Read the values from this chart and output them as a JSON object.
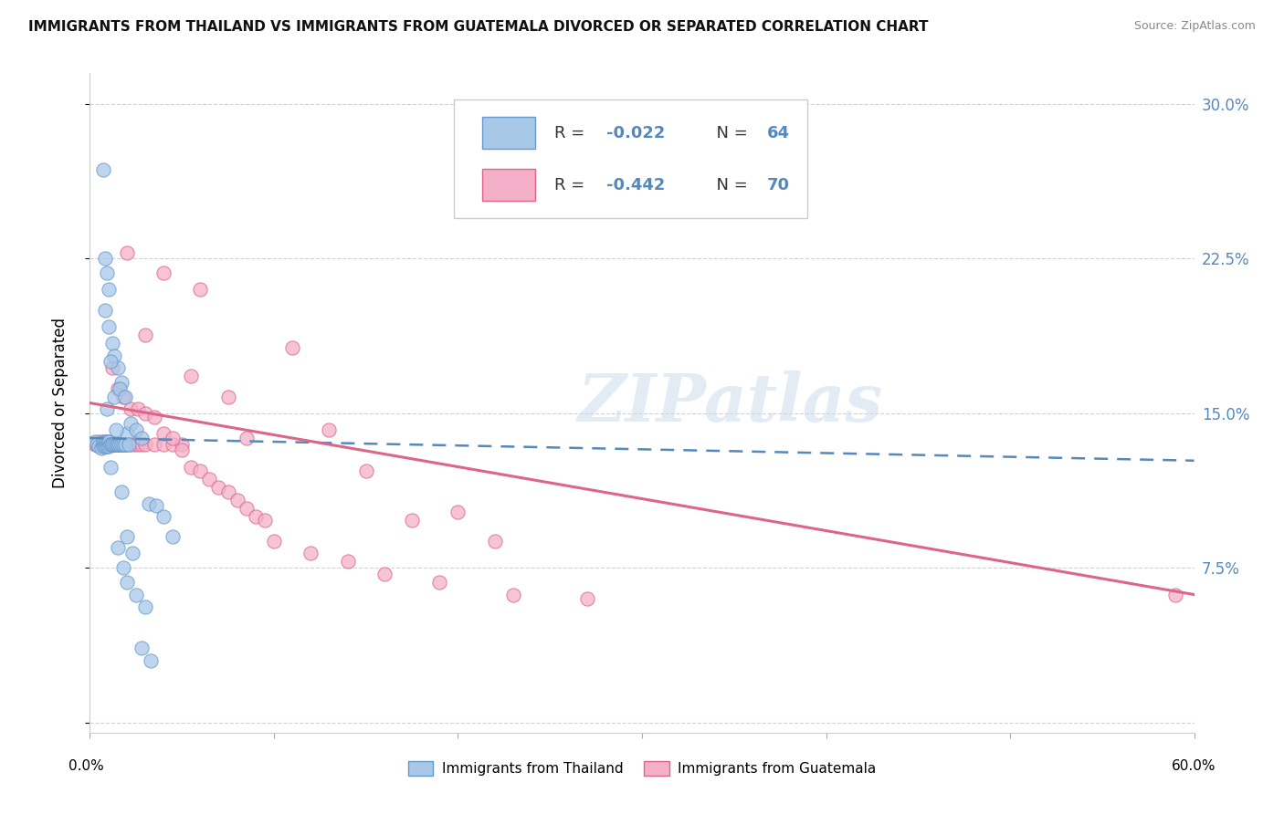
{
  "title": "IMMIGRANTS FROM THAILAND VS IMMIGRANTS FROM GUATEMALA DIVORCED OR SEPARATED CORRELATION CHART",
  "source": "Source: ZipAtlas.com",
  "ylabel": "Divorced or Separated",
  "yticks": [
    0.0,
    0.075,
    0.15,
    0.225,
    0.3
  ],
  "ytick_labels": [
    "",
    "7.5%",
    "15.0%",
    "22.5%",
    "30.0%"
  ],
  "xlim": [
    0.0,
    0.6
  ],
  "ylim": [
    -0.005,
    0.315
  ],
  "color_thailand": "#a8c8e8",
  "color_guatemala": "#f4b0c8",
  "color_edge_thailand": "#6699cc",
  "color_edge_guatemala": "#dd6688",
  "color_line_thailand": "#5588bb",
  "color_line_guatemala": "#dd6688",
  "label_thailand": "Immigrants from Thailand",
  "label_guatemala": "Immigrants from Guatemala",
  "legend_text_r1": "R = -0.022",
  "legend_text_n1": "N = 64",
  "legend_text_r2": "R = -0.442",
  "legend_text_n2": "N = 70",
  "watermark": "ZIPatlas",
  "thailand_trend_x": [
    0.0,
    0.6
  ],
  "thailand_trend_y": [
    0.138,
    0.127
  ],
  "guatemala_trend_x": [
    0.0,
    0.6
  ],
  "guatemala_trend_y": [
    0.155,
    0.062
  ],
  "thailand_x": [
    0.003,
    0.004,
    0.005,
    0.006,
    0.007,
    0.007,
    0.007,
    0.008,
    0.008,
    0.008,
    0.009,
    0.009,
    0.009,
    0.01,
    0.01,
    0.01,
    0.011,
    0.011,
    0.012,
    0.012,
    0.013,
    0.014,
    0.015,
    0.015,
    0.016,
    0.017,
    0.018,
    0.019,
    0.02,
    0.021,
    0.008,
    0.01,
    0.012,
    0.013,
    0.015,
    0.017,
    0.008,
    0.009,
    0.01,
    0.011,
    0.013,
    0.016,
    0.019,
    0.022,
    0.025,
    0.028,
    0.032,
    0.036,
    0.04,
    0.045,
    0.015,
    0.018,
    0.02,
    0.025,
    0.03,
    0.007,
    0.009,
    0.011,
    0.014,
    0.017,
    0.02,
    0.023,
    0.028,
    0.033
  ],
  "thailand_y": [
    0.136,
    0.135,
    0.134,
    0.133,
    0.135,
    0.136,
    0.134,
    0.135,
    0.136,
    0.134,
    0.135,
    0.136,
    0.134,
    0.135,
    0.136,
    0.134,
    0.135,
    0.135,
    0.135,
    0.135,
    0.135,
    0.135,
    0.135,
    0.135,
    0.135,
    0.135,
    0.135,
    0.135,
    0.14,
    0.135,
    0.2,
    0.192,
    0.184,
    0.178,
    0.172,
    0.165,
    0.225,
    0.218,
    0.21,
    0.175,
    0.158,
    0.162,
    0.158,
    0.145,
    0.142,
    0.138,
    0.106,
    0.105,
    0.1,
    0.09,
    0.085,
    0.075,
    0.068,
    0.062,
    0.056,
    0.268,
    0.152,
    0.124,
    0.142,
    0.112,
    0.09,
    0.082,
    0.036,
    0.03
  ],
  "guatemala_x": [
    0.003,
    0.004,
    0.005,
    0.006,
    0.007,
    0.007,
    0.008,
    0.009,
    0.009,
    0.01,
    0.01,
    0.011,
    0.012,
    0.013,
    0.014,
    0.015,
    0.016,
    0.017,
    0.018,
    0.019,
    0.02,
    0.022,
    0.024,
    0.026,
    0.028,
    0.03,
    0.035,
    0.04,
    0.045,
    0.05,
    0.012,
    0.015,
    0.018,
    0.022,
    0.026,
    0.03,
    0.035,
    0.04,
    0.045,
    0.05,
    0.055,
    0.06,
    0.065,
    0.07,
    0.075,
    0.08,
    0.085,
    0.09,
    0.095,
    0.1,
    0.12,
    0.14,
    0.16,
    0.19,
    0.23,
    0.27,
    0.59,
    0.06,
    0.11,
    0.15,
    0.2,
    0.13,
    0.175,
    0.22,
    0.075,
    0.04,
    0.02,
    0.03,
    0.055,
    0.085
  ],
  "guatemala_y": [
    0.135,
    0.135,
    0.136,
    0.135,
    0.136,
    0.134,
    0.135,
    0.136,
    0.134,
    0.135,
    0.136,
    0.135,
    0.135,
    0.135,
    0.135,
    0.135,
    0.135,
    0.135,
    0.135,
    0.135,
    0.135,
    0.135,
    0.135,
    0.135,
    0.135,
    0.135,
    0.135,
    0.135,
    0.135,
    0.135,
    0.172,
    0.162,
    0.158,
    0.152,
    0.152,
    0.15,
    0.148,
    0.14,
    0.138,
    0.132,
    0.124,
    0.122,
    0.118,
    0.114,
    0.112,
    0.108,
    0.104,
    0.1,
    0.098,
    0.088,
    0.082,
    0.078,
    0.072,
    0.068,
    0.062,
    0.06,
    0.062,
    0.21,
    0.182,
    0.122,
    0.102,
    0.142,
    0.098,
    0.088,
    0.158,
    0.218,
    0.228,
    0.188,
    0.168,
    0.138
  ]
}
